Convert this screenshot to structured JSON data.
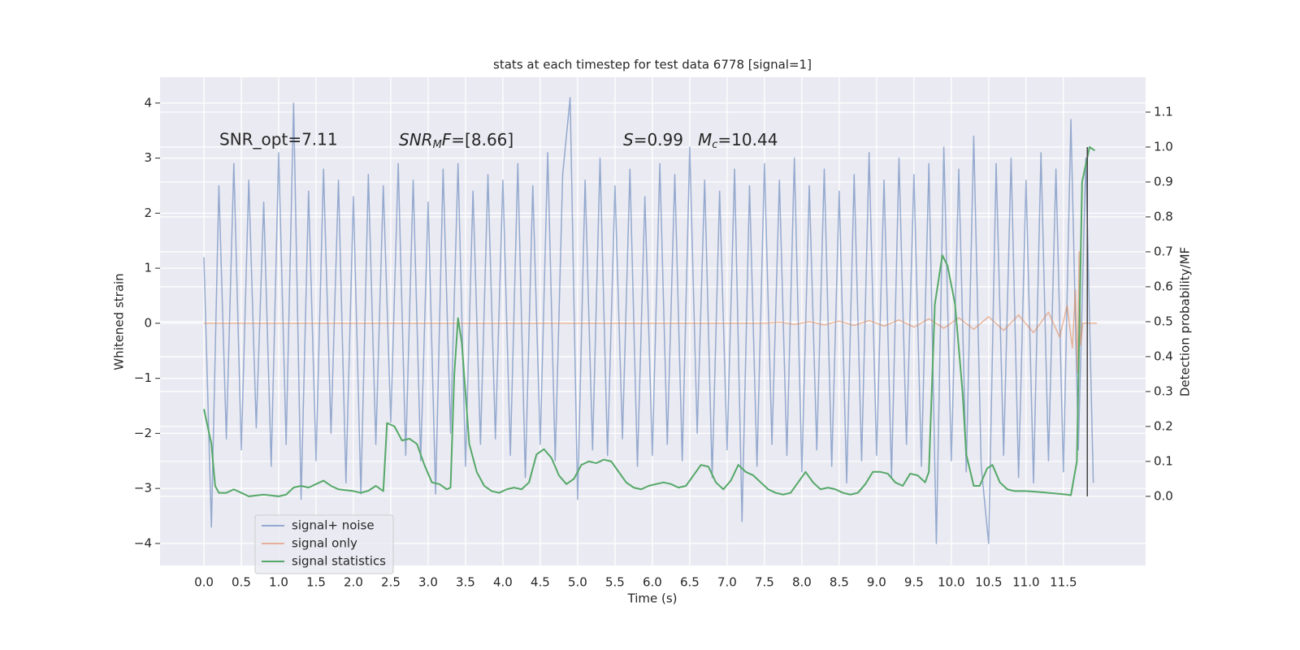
{
  "chart_data": {
    "type": "line",
    "title": "stats at each timestep for test data 6778 [signal=1]",
    "xlabel": "Time (s)",
    "ylabel": "Whitened strain",
    "y2label": "Detection probability/MF",
    "annotations": [
      [
        "SNR_opt=7.11"
      ],
      [
        "SNR",
        "M",
        "F",
        "=[8.66]"
      ],
      [
        "S",
        "=0.99",
        "M",
        "c",
        "=10.44"
      ]
    ],
    "xlim": [
      -0.587,
      12.6
    ],
    "ylim": [
      -4.4,
      4.47
    ],
    "y2lim": [
      -0.198,
      1.2
    ],
    "xticks": [
      {
        "value": 0,
        "label": "0.0"
      },
      0.5,
      {
        "value": 1,
        "label": "1.0"
      },
      1.5,
      {
        "value": 2,
        "label": "2.0"
      },
      2.5,
      {
        "value": 3,
        "label": "3.0"
      },
      3.5,
      {
        "value": 4,
        "label": "4.0"
      },
      4.5,
      {
        "value": 5,
        "label": "5.0"
      },
      5.5,
      {
        "value": 6,
        "label": "6.0"
      },
      6.5,
      {
        "value": 7,
        "label": "7.0"
      },
      7.5,
      {
        "value": 8,
        "label": "8.0"
      },
      8.5,
      {
        "value": 9,
        "label": "9.0"
      },
      9.5,
      {
        "value": 10,
        "label": "10.0"
      },
      10.5,
      {
        "value": 11,
        "label": "11.0"
      },
      11.5
    ],
    "yticks": [
      {
        "value": -4,
        "label": "−4"
      },
      {
        "value": -3,
        "label": "−3"
      },
      {
        "value": -2,
        "label": "−2"
      },
      {
        "value": -1,
        "label": "−1"
      },
      0,
      1,
      2,
      3,
      4
    ],
    "y2ticks": [
      {
        "value": 0,
        "label": "0.0"
      },
      0.1,
      0.2,
      0.3,
      0.4,
      0.5,
      0.6,
      0.7,
      0.8,
      0.9,
      {
        "value": 1,
        "label": "1.0"
      },
      1.1
    ],
    "grid": true,
    "legend": "lower left",
    "vline": {
      "x": 11.82,
      "color": "#444444"
    },
    "series": [
      {
        "name": "signal+ noise",
        "color": "#4c72b0",
        "x": [
          0.0,
          0.1,
          0.2,
          0.3,
          0.4,
          0.5,
          0.6,
          0.7,
          0.8,
          0.9,
          1.0,
          1.1,
          1.2,
          1.3,
          1.4,
          1.5,
          1.6,
          1.7,
          1.8,
          1.9,
          2.0,
          2.1,
          2.2,
          2.3,
          2.4,
          2.5,
          2.6,
          2.7,
          2.8,
          2.9,
          3.0,
          3.1,
          3.2,
          3.3,
          3.4,
          3.5,
          3.6,
          3.7,
          3.8,
          3.9,
          4.0,
          4.1,
          4.2,
          4.3,
          4.4,
          4.5,
          4.6,
          4.7,
          4.8,
          4.9,
          5.0,
          5.1,
          5.2,
          5.3,
          5.4,
          5.5,
          5.6,
          5.7,
          5.8,
          5.9,
          6.0,
          6.1,
          6.2,
          6.3,
          6.4,
          6.5,
          6.6,
          6.7,
          6.8,
          6.9,
          7.0,
          7.1,
          7.2,
          7.3,
          7.4,
          7.5,
          7.6,
          7.7,
          7.8,
          7.9,
          8.0,
          8.1,
          8.2,
          8.3,
          8.4,
          8.5,
          8.6,
          8.7,
          8.8,
          8.9,
          9.0,
          9.1,
          9.2,
          9.3,
          9.4,
          9.5,
          9.6,
          9.7,
          9.8,
          9.9,
          10.0,
          10.1,
          10.2,
          10.3,
          10.4,
          10.5,
          10.6,
          10.7,
          10.8,
          10.9,
          11.0,
          11.1,
          11.2,
          11.3,
          11.4,
          11.5,
          11.6,
          11.7,
          11.8,
          11.9
        ],
        "values": [
          1.2,
          -3.7,
          2.5,
          -2.1,
          2.9,
          -2.3,
          2.6,
          -1.9,
          2.2,
          -2.6,
          3.1,
          -2.2,
          4.0,
          -3.2,
          2.4,
          -2.5,
          2.8,
          -2.0,
          2.6,
          -2.9,
          2.3,
          -3.1,
          2.7,
          -2.2,
          2.5,
          -1.8,
          2.9,
          -2.4,
          2.6,
          -2.5,
          2.2,
          -3.1,
          2.8,
          -2.0,
          2.9,
          -2.6,
          2.4,
          -2.2,
          2.7,
          -2.1,
          2.6,
          -2.4,
          2.9,
          -2.8,
          2.5,
          -2.2,
          3.1,
          -2.5,
          2.7,
          4.1,
          -3.2,
          2.6,
          -2.3,
          3.0,
          -2.4,
          2.5,
          -2.1,
          2.8,
          -2.6,
          2.3,
          -2.4,
          2.9,
          -2.2,
          2.7,
          -2.5,
          3.2,
          -2.0,
          2.6,
          -2.8,
          2.4,
          -2.3,
          2.8,
          -3.6,
          2.5,
          -2.6,
          2.9,
          -2.2,
          2.6,
          -2.4,
          3.0,
          -2.7,
          2.5,
          -2.3,
          2.8,
          -2.6,
          2.4,
          -2.9,
          2.7,
          -2.5,
          3.1,
          -2.4,
          2.6,
          -2.8,
          3.0,
          -2.2,
          2.7,
          -2.6,
          2.9,
          -4.0,
          3.2,
          -2.5,
          2.8,
          -2.7,
          3.4,
          -2.6,
          -4.0,
          2.9,
          -2.4,
          3.0,
          -2.8,
          2.6,
          -2.9,
          3.1,
          -2.5,
          2.8,
          -2.7,
          3.7,
          -2.3,
          3.0,
          -2.9
        ]
      },
      {
        "name": "signal only",
        "color": "#dd8452",
        "x": [
          0,
          7.5,
          7.7,
          7.9,
          8.1,
          8.3,
          8.5,
          8.7,
          8.9,
          9.1,
          9.3,
          9.5,
          9.7,
          9.9,
          10.1,
          10.3,
          10.5,
          10.7,
          10.9,
          11.1,
          11.3,
          11.45,
          11.55,
          11.62,
          11.66,
          11.69,
          11.71,
          11.73,
          11.76,
          11.95
        ],
        "values": [
          0,
          0,
          0.02,
          -0.02,
          0.03,
          -0.03,
          0.04,
          -0.04,
          0.05,
          -0.05,
          0.06,
          -0.07,
          0.08,
          -0.09,
          0.1,
          -0.11,
          0.12,
          -0.13,
          0.15,
          -0.17,
          0.2,
          -0.25,
          0.32,
          -0.45,
          0.6,
          -0.9,
          1.3,
          -0.4,
          0,
          0
        ]
      },
      {
        "name": "signal statistics",
        "color": "#55a868",
        "axis": "y2",
        "x": [
          0.0,
          0.1,
          0.15,
          0.2,
          0.3,
          0.4,
          0.5,
          0.6,
          0.8,
          1.0,
          1.1,
          1.2,
          1.3,
          1.4,
          1.5,
          1.6,
          1.7,
          1.8,
          2.0,
          2.1,
          2.2,
          2.3,
          2.4,
          2.45,
          2.55,
          2.65,
          2.75,
          2.85,
          2.95,
          3.05,
          3.15,
          3.25,
          3.3,
          3.35,
          3.4,
          3.45,
          3.55,
          3.65,
          3.75,
          3.85,
          3.95,
          4.05,
          4.15,
          4.25,
          4.35,
          4.45,
          4.55,
          4.65,
          4.75,
          4.85,
          4.95,
          5.05,
          5.15,
          5.25,
          5.35,
          5.45,
          5.55,
          5.65,
          5.75,
          5.85,
          5.95,
          6.05,
          6.15,
          6.25,
          6.35,
          6.45,
          6.55,
          6.65,
          6.75,
          6.85,
          6.95,
          7.05,
          7.15,
          7.25,
          7.35,
          7.45,
          7.55,
          7.65,
          7.75,
          7.85,
          7.95,
          8.05,
          8.15,
          8.25,
          8.35,
          8.45,
          8.55,
          8.65,
          8.75,
          8.85,
          8.95,
          9.05,
          9.15,
          9.25,
          9.35,
          9.45,
          9.55,
          9.65,
          9.7,
          9.78,
          9.88,
          9.95,
          10.05,
          10.15,
          10.2,
          10.3,
          10.38,
          10.48,
          10.55,
          10.65,
          10.75,
          10.85,
          11.0,
          11.2,
          11.4,
          11.55,
          11.6,
          11.68,
          11.75,
          11.85,
          11.92
        ],
        "values": [
          0.25,
          0.15,
          0.03,
          0.01,
          0.01,
          0.02,
          0.01,
          0.0,
          0.005,
          0.0,
          0.005,
          0.025,
          0.03,
          0.025,
          0.035,
          0.045,
          0.03,
          0.02,
          0.015,
          0.01,
          0.016,
          0.03,
          0.015,
          0.21,
          0.2,
          0.16,
          0.165,
          0.15,
          0.09,
          0.04,
          0.035,
          0.02,
          0.025,
          0.35,
          0.51,
          0.44,
          0.15,
          0.07,
          0.03,
          0.015,
          0.01,
          0.02,
          0.025,
          0.02,
          0.04,
          0.12,
          0.135,
          0.11,
          0.06,
          0.035,
          0.05,
          0.09,
          0.1,
          0.095,
          0.105,
          0.1,
          0.07,
          0.04,
          0.025,
          0.02,
          0.03,
          0.035,
          0.04,
          0.035,
          0.025,
          0.03,
          0.06,
          0.09,
          0.085,
          0.04,
          0.02,
          0.045,
          0.09,
          0.07,
          0.06,
          0.04,
          0.02,
          0.01,
          0.005,
          0.01,
          0.04,
          0.07,
          0.04,
          0.02,
          0.025,
          0.02,
          0.01,
          0.005,
          0.01,
          0.035,
          0.07,
          0.07,
          0.065,
          0.04,
          0.03,
          0.065,
          0.06,
          0.04,
          0.07,
          0.55,
          0.69,
          0.66,
          0.55,
          0.3,
          0.12,
          0.03,
          0.03,
          0.08,
          0.09,
          0.04,
          0.02,
          0.015,
          0.015,
          0.012,
          0.008,
          0.005,
          0.003,
          0.1,
          0.9,
          1.0,
          0.99
        ]
      }
    ]
  }
}
